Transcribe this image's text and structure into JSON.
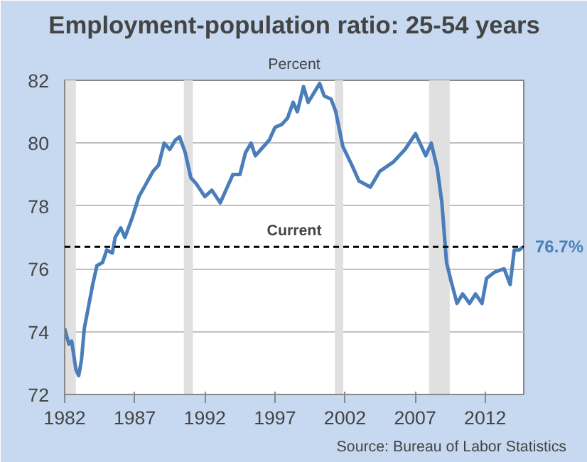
{
  "chart_data": {
    "type": "line",
    "title": "Employment-population ratio: 25-54 years",
    "subtitle": "Percent",
    "x": [
      1982.0,
      1982.3,
      1982.5,
      1982.8,
      1983.0,
      1983.2,
      1983.4,
      1983.7,
      1984.0,
      1984.3,
      1984.7,
      1985.0,
      1985.4,
      1985.6,
      1986.0,
      1986.3,
      1986.8,
      1987.3,
      1987.8,
      1988.3,
      1988.7,
      1989.1,
      1989.5,
      1989.9,
      1990.2,
      1990.6,
      1991.0,
      1991.4,
      1992.0,
      1992.5,
      1993.1,
      1993.6,
      1994.0,
      1994.5,
      1994.9,
      1995.3,
      1995.6,
      1996.0,
      1996.6,
      1997.0,
      1997.5,
      1997.9,
      1998.3,
      1998.6,
      1999.04,
      1999.37,
      2000.19,
      2000.52,
      2001.01,
      2001.34,
      2001.84,
      2002.49,
      2002.99,
      2003.81,
      2004.47,
      2005.45,
      2006.28,
      2007.03,
      2007.76,
      2008.15,
      2008.58,
      2008.91,
      2009.24,
      2009.57,
      2009.99,
      2010.39,
      2010.88,
      2011.31,
      2011.77,
      2012.1,
      2012.69,
      2013.35,
      2013.78,
      2014.07,
      2014.43,
      2014.7
    ],
    "series": [
      {
        "color": "#4a7ebb",
        "values": [
          74.1,
          73.6,
          73.7,
          72.8,
          72.6,
          73.1,
          74.1,
          74.8,
          75.5,
          76.1,
          76.2,
          76.6,
          76.5,
          77.0,
          77.3,
          77.0,
          77.6,
          78.3,
          78.7,
          79.1,
          79.3,
          80.0,
          79.8,
          80.1,
          80.2,
          79.7,
          78.9,
          78.7,
          78.3,
          78.5,
          78.1,
          78.6,
          79.0,
          79.0,
          79.7,
          80.0,
          79.6,
          79.8,
          80.1,
          80.5,
          80.6,
          80.8,
          81.3,
          81.0,
          81.8,
          81.3,
          81.9,
          81.5,
          81.4,
          81.0,
          79.9,
          79.3,
          78.8,
          78.6,
          79.1,
          79.4,
          79.8,
          80.3,
          79.6,
          80.0,
          79.2,
          78.1,
          76.2,
          75.6,
          74.9,
          75.2,
          74.9,
          75.2,
          74.9,
          75.7,
          75.9,
          76.0,
          75.5,
          76.6,
          76.6,
          76.7
        ]
      }
    ],
    "xlim": [
      1982,
      2014.75
    ],
    "xticks": [
      1982,
      1987,
      1992,
      1997,
      2002,
      2007,
      2012
    ],
    "ylim": [
      72,
      82
    ],
    "yticks": [
      72,
      74,
      76,
      78,
      80,
      82
    ],
    "grid": "y",
    "bands": [
      {
        "axis": "x",
        "from": 1982.0,
        "to": 1982.8,
        "color": "#e0e0e0"
      },
      {
        "axis": "x",
        "from": 1990.5,
        "to": 1991.15,
        "color": "#e0e0e0"
      },
      {
        "axis": "x",
        "from": 2001.28,
        "to": 2001.87,
        "color": "#e0e0e0"
      },
      {
        "axis": "x",
        "from": 2007.99,
        "to": 2009.47,
        "color": "#e0e0e0"
      }
    ],
    "ref_lines": [
      {
        "axis": "y",
        "value": 76.7,
        "label": "Current",
        "color": "#000000",
        "line_style": "dashed"
      }
    ],
    "annotations": [
      {
        "text": "76.7%",
        "x": 2014.7,
        "y": 76.7
      },
      "Source: Bureau of Labor Statistics"
    ]
  }
}
